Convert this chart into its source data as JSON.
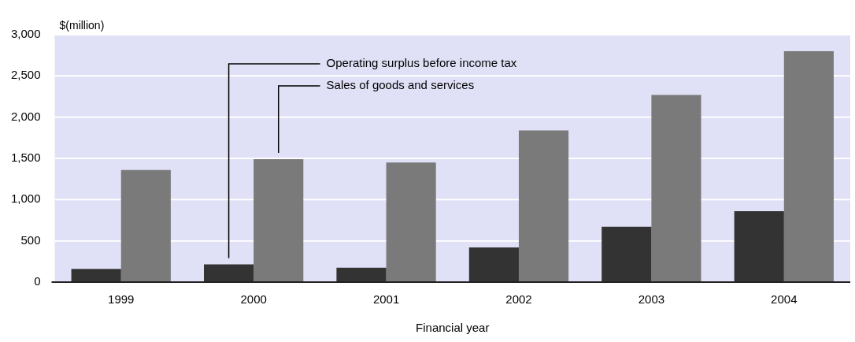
{
  "chart_data": {
    "type": "bar",
    "xlabel": "Financial year",
    "ylabel": "$(million)",
    "categories": [
      "1999",
      "2000",
      "2001",
      "2002",
      "2003",
      "2004"
    ],
    "series": [
      {
        "name": "Operating surplus before income tax",
        "color": "#333333",
        "values": [
          160,
          215,
          175,
          420,
          670,
          860
        ]
      },
      {
        "name": "Sales of goods and services",
        "color": "#7a7a7a",
        "values": [
          1360,
          1490,
          1450,
          1840,
          2270,
          2800
        ]
      }
    ],
    "ylim": [
      0,
      3000
    ],
    "yticks": [
      {
        "value": 0,
        "label": "0"
      },
      {
        "value": 500,
        "label": "500"
      },
      {
        "value": 1000,
        "label": "1,000"
      },
      {
        "value": 1500,
        "label": "1,500"
      },
      {
        "value": 2000,
        "label": "2,000"
      },
      {
        "value": 2500,
        "label": "2,500"
      },
      {
        "value": 3000,
        "label": "3,000"
      }
    ],
    "grid": "y",
    "legend": false
  }
}
